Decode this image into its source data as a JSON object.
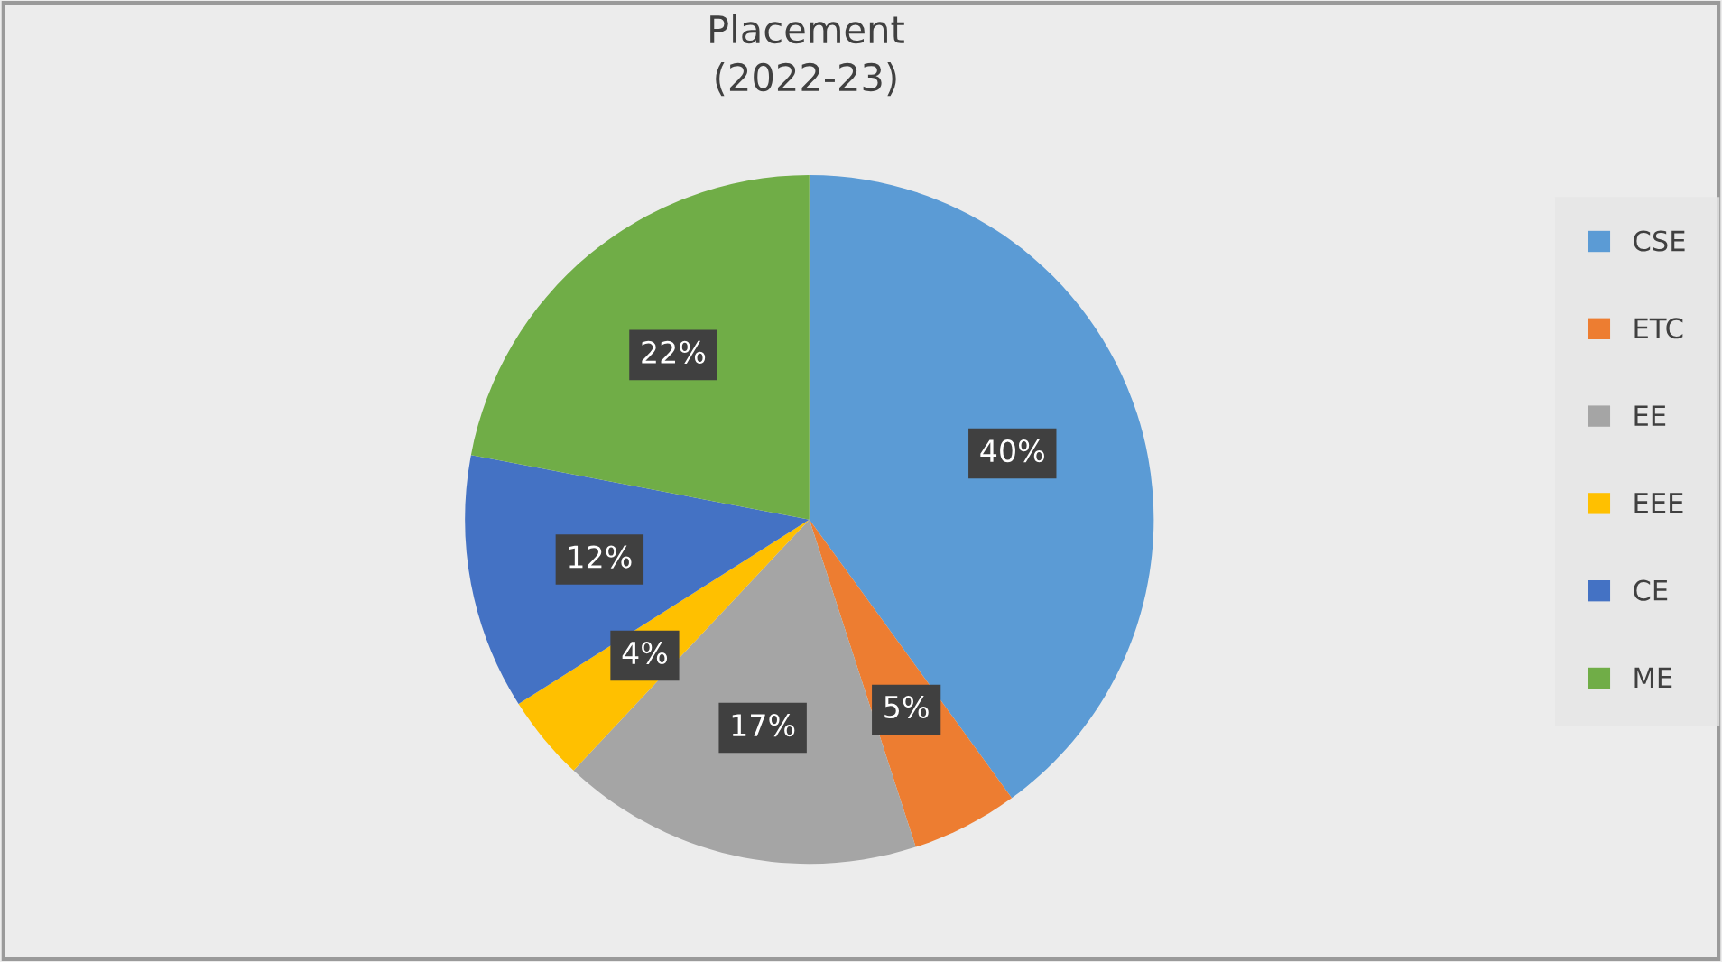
{
  "chart_data": {
    "type": "pie",
    "title": "Placement\n(2022-23)",
    "categories": [
      "CSE",
      "ETC",
      "EE",
      "EEE",
      "CE",
      "ME"
    ],
    "values": [
      40,
      5,
      17,
      4,
      12,
      22
    ],
    "colors": [
      "#5b9bd5",
      "#ed7d31",
      "#a5a5a5",
      "#ffc000",
      "#4472c4",
      "#70ad47"
    ],
    "value_labels": [
      "40%",
      "5%",
      "17%",
      "4%",
      "12%",
      "22%"
    ],
    "legend": "right"
  }
}
